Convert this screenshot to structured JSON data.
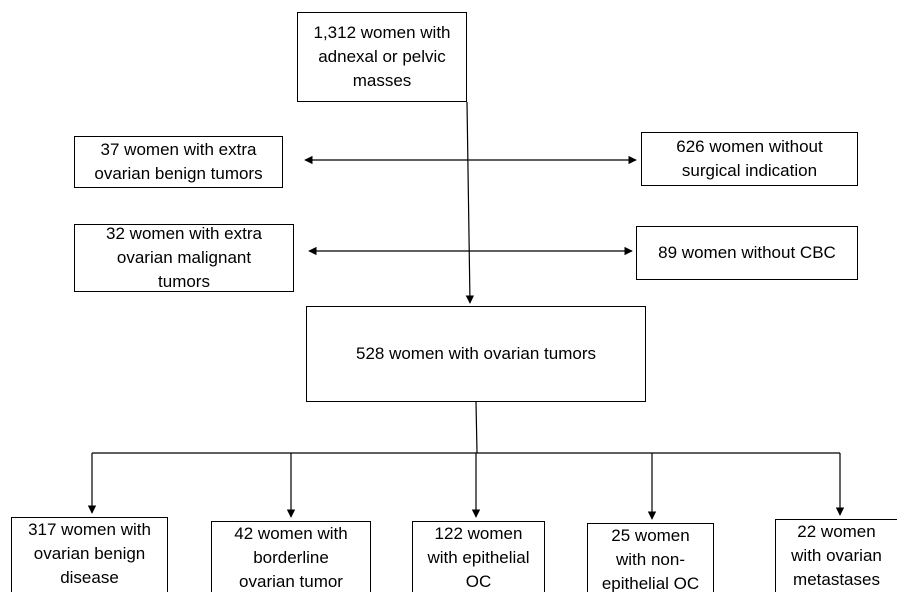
{
  "nodes": [
    {
      "label": "1,312 women with adnexal or pelvic masses"
    },
    {
      "label": "37 women with extra ovarian benign tumors"
    },
    {
      "label": "626 women without surgical indication"
    },
    {
      "label": "32 women with extra ovarian malignant tumors"
    },
    {
      "label": "89 women without CBC"
    },
    {
      "label": "528 women with ovarian tumors"
    },
    {
      "label": "317 women with ovarian benign disease"
    },
    {
      "label": "42 women with borderline ovarian tumor"
    },
    {
      "label": "122 women with epithelial OC"
    },
    {
      "label": "25 women with non-epithelial OC"
    },
    {
      "label": "22 women with ovarian metastases"
    }
  ]
}
